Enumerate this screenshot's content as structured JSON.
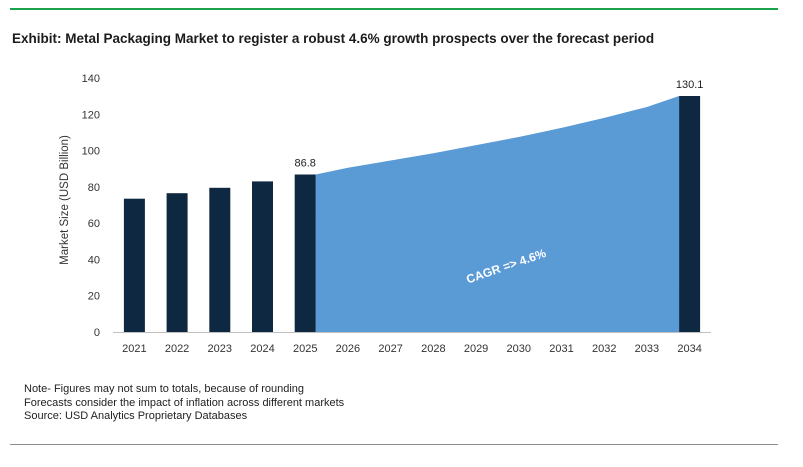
{
  "title": "Exhibit: Metal Packaging Market to register a robust 4.6% growth prospects over the forecast period",
  "notes": [
    "Note- Figures may not sum to totals, because of rounding",
    "Forecasts consider the impact of inflation across different markets",
    "Source: USD Analytics Proprietary Databases"
  ],
  "colors": {
    "bar": "#0e2841",
    "area": "#5b9bd5",
    "top_rule": "#1aa34a",
    "annotation_text": "#ffffff"
  },
  "chart_data": {
    "type": "bar",
    "categories": [
      "2021",
      "2022",
      "2023",
      "2024",
      "2025",
      "2026",
      "2027",
      "2028",
      "2029",
      "2030",
      "2031",
      "2032",
      "2033",
      "2034"
    ],
    "bars": [
      {
        "x": "2021",
        "value": 73.5
      },
      {
        "x": "2022",
        "value": 76.5
      },
      {
        "x": "2023",
        "value": 79.5
      },
      {
        "x": "2024",
        "value": 83.0
      },
      {
        "x": "2025",
        "value": 86.8,
        "label": "86.8"
      },
      {
        "x": "2034",
        "value": 130.1,
        "label": "130.1"
      }
    ],
    "area": {
      "x": [
        "2025",
        "2026",
        "2027",
        "2028",
        "2029",
        "2030",
        "2031",
        "2032",
        "2033",
        "2034"
      ],
      "values": [
        86.8,
        90.5,
        94.5,
        98.5,
        103.0,
        107.5,
        112.5,
        118.0,
        124.0,
        130.1
      ]
    },
    "annotation": "CAGR => 4.6%",
    "ylabel": "Market Size (USD Billion)",
    "xlabel": "",
    "ylim": [
      0,
      140
    ],
    "yticks": [
      "0",
      "20",
      "40",
      "60",
      "80",
      "100",
      "120",
      "140"
    ],
    "grid": false,
    "legend": "none"
  }
}
